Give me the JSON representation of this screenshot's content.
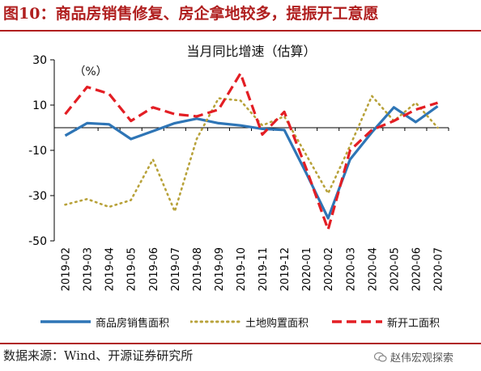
{
  "figure": {
    "title": "图10：商品房销售修复、房企拿地较多，提振开工意愿",
    "source": "数据来源：Wind、开源证券研究所",
    "watermark": "赵伟宏观探索"
  },
  "colors": {
    "brand_red": "#b01f1f",
    "sales_line": "#2e75b6",
    "land_line": "#b8a23a",
    "starts_line": "#e31e24"
  },
  "chart_data": {
    "type": "line",
    "title": "当月同比增速（估算）",
    "unit_label": "（%）",
    "xlabel": "",
    "ylabel": "",
    "ylim": [
      -50,
      30
    ],
    "yticks": [
      30,
      10,
      -10,
      -30,
      -50
    ],
    "categories": [
      "2019-02",
      "2019-03",
      "2019-04",
      "2019-05",
      "2019-06",
      "2019-07",
      "2019-08",
      "2019-09",
      "2019-10",
      "2019-11",
      "2019-12",
      "2020-01",
      "2020-02",
      "2020-03",
      "2020-04",
      "2020-05",
      "2020-06",
      "2020-07"
    ],
    "grid": false,
    "legend_position": "bottom",
    "series": [
      {
        "name": "商品房销售面积",
        "style": "solid",
        "values": [
          -3.5,
          2,
          1.5,
          -5,
          -1.5,
          2,
          4,
          2,
          1,
          -0.5,
          -1,
          -20,
          -40,
          -14,
          -2,
          9,
          2.5,
          9.5
        ]
      },
      {
        "name": "土地购置面积",
        "style": "dotted",
        "values": [
          -34,
          -31.5,
          -35,
          -32,
          -14,
          -37,
          -5,
          13,
          12,
          1,
          5,
          -12,
          -29,
          -8,
          14,
          3,
          11,
          0
        ]
      },
      {
        "name": "新开工面积",
        "style": "dashed",
        "values": [
          6,
          18,
          15,
          3,
          9,
          6,
          5,
          8,
          24,
          -3,
          7,
          -18,
          -45,
          -10,
          -1,
          3,
          8,
          11
        ]
      }
    ]
  }
}
